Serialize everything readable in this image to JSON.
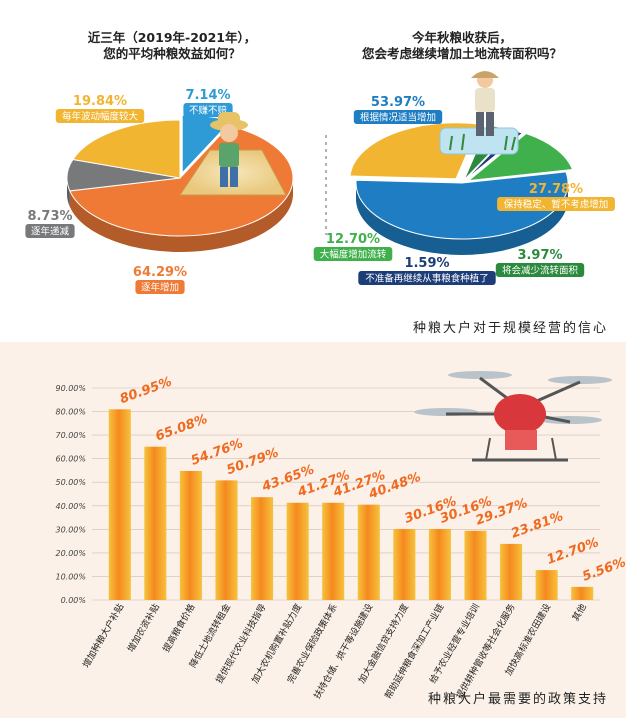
{
  "charts": {
    "left": {
      "title_line1": "近三年（2019年-2021年），",
      "title_line2": "您的平均种粮效益如何？"
    },
    "right": {
      "title_line1": "今年秋粮收获后，",
      "title_line2": "您会考虑继续增加土地流转面积吗？"
    },
    "top_caption": "种粮大户对于规模经营的信心",
    "bottom_caption": "种粮大户最需要的政策支持"
  },
  "chart_data": [
    {
      "type": "pie",
      "title": "近三年（2019年-2021年），您的平均种粮效益如何？",
      "slices": [
        {
          "label": "不赚不赔",
          "value": 7.14,
          "value_text": "7.14%",
          "color": "#2f9bd6"
        },
        {
          "label": "逐年增加",
          "value": 64.29,
          "value_text": "64.29%",
          "color": "#ef7a36"
        },
        {
          "label": "逐年递减",
          "value": 8.73,
          "value_text": "8.73%",
          "color": "#77797b"
        },
        {
          "label": "每年波动幅度较大",
          "value": 19.84,
          "value_text": "19.84%",
          "color": "#f2b531"
        }
      ]
    },
    {
      "type": "pie",
      "title": "今年秋粮收获后，您会考虑继续增加土地流转面积吗？",
      "slices": [
        {
          "label": "根据情况适当增加",
          "value": 53.97,
          "value_text": "53.97%",
          "color": "#1f7ec3"
        },
        {
          "label": "保持稳定、暂不考虑增加",
          "value": 27.78,
          "value_text": "27.78%",
          "color": "#f2b531"
        },
        {
          "label": "将会减少流转面积",
          "value": 3.97,
          "value_text": "3.97%",
          "color": "#2c8a3e"
        },
        {
          "label": "不准备再继续从事粮食种植了",
          "value": 1.59,
          "value_text": "1.59%",
          "color": "#1d3d78"
        },
        {
          "label": "大幅度增加流转",
          "value": 12.7,
          "value_text": "12.70%",
          "color": "#3fb04b"
        }
      ]
    },
    {
      "type": "bar",
      "title": "种粮大户最需要的政策支持",
      "ylim": [
        0,
        90
      ],
      "yticks": [
        "0.00%",
        "10.00%",
        "20.00%",
        "30.00%",
        "40.00%",
        "50.00%",
        "60.00%",
        "70.00%",
        "80.00%",
        "90.00%"
      ],
      "categories": [
        "增加种粮大户补贴",
        "增加农资补贴",
        "提高粮食价格",
        "降低土地流转租金",
        "提供现代农业科技指导",
        "加大农机购置补贴力度",
        "完善农业保险政策体系",
        "扶持仓储、烘干等设施建设",
        "加大金融信贷支持力度",
        "帮助延伸粮食深加工产业链",
        "给予农业经营专业培训",
        "提供耕种管收等社会化服务",
        "加快高标准农田建设",
        "其他"
      ],
      "values": [
        80.95,
        65.08,
        54.76,
        50.79,
        43.65,
        41.27,
        41.27,
        40.48,
        30.16,
        30.16,
        29.37,
        23.81,
        12.7,
        5.56
      ],
      "value_labels": [
        "80.95%",
        "65.08%",
        "54.76%",
        "50.79%",
        "43.65%",
        "41.27%",
        "41.27%",
        "40.48%",
        "30.16%",
        "30.16%",
        "29.37%",
        "23.81%",
        "12.70%",
        "5.56%"
      ]
    }
  ]
}
